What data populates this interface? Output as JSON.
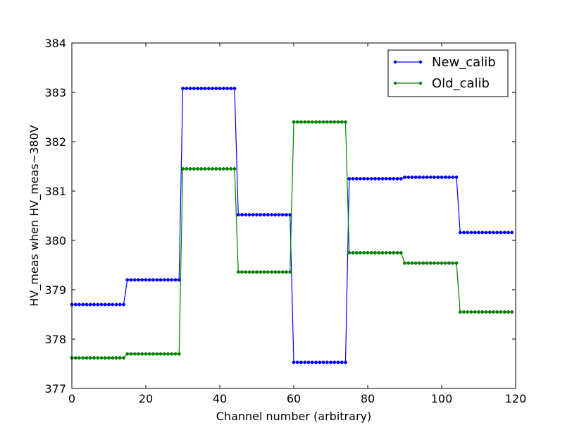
{
  "chart_data": {
    "type": "line",
    "title": "",
    "xlabel": "Channel number (arbitrary)",
    "ylabel": "HV_meas when HV_meas~380V",
    "xlim": [
      0,
      120
    ],
    "ylim": [
      377,
      384
    ],
    "xticks": [
      "0",
      "20",
      "40",
      "60",
      "80",
      "100",
      "120"
    ],
    "yticks": [
      "377",
      "378",
      "379",
      "380",
      "381",
      "382",
      "383",
      "384"
    ],
    "grid": false,
    "legend_position": "top-right",
    "segment_size": 15,
    "series": [
      {
        "name": "New_calib",
        "color": "#0000ff",
        "values": [
          378.7,
          379.2,
          383.08,
          380.52,
          377.53,
          381.25,
          381.28,
          380.16
        ]
      },
      {
        "name": "Old_calib",
        "color": "#008000",
        "values": [
          377.62,
          377.7,
          381.45,
          379.36,
          382.4,
          379.75,
          379.54,
          378.55
        ]
      }
    ]
  }
}
